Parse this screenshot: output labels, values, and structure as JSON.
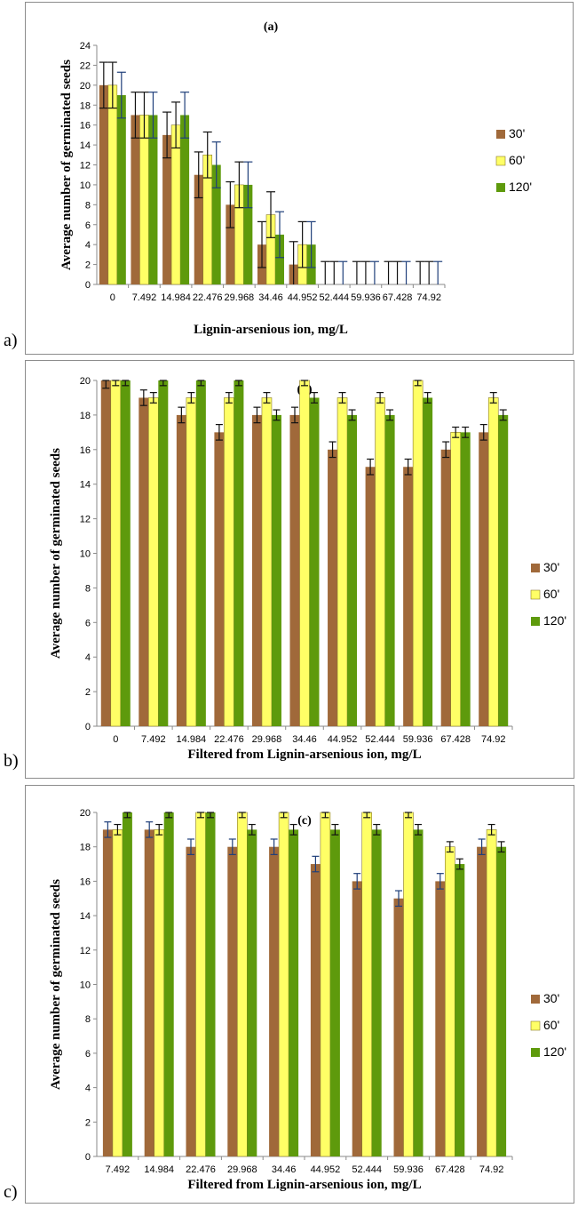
{
  "colors": {
    "s30": "#A0693A",
    "s60": "#FFFF66",
    "s120": "#5E9A0C",
    "err_black": "#111111",
    "err_blue": "#1F3F7A"
  },
  "chart_data": [
    {
      "id": "a",
      "type": "bar",
      "outer_label": "a)",
      "title": "(a)",
      "xlabel": "Lignin-arsenious ion, mg/L",
      "ylabel": "Average number of germinated seeds",
      "ylim": [
        0,
        24
      ],
      "ytick_step": 2,
      "grid": false,
      "legend": "right",
      "categories": [
        "0",
        "7.492",
        "14.984",
        "22.476",
        "29.968",
        "34.46",
        "44.952",
        "52.444",
        "59.936",
        "67.428",
        "74.92"
      ],
      "series": [
        {
          "name": "30'",
          "color": "#A0693A",
          "values": [
            20,
            17,
            15,
            11,
            8,
            4,
            2,
            0,
            0,
            0,
            0
          ],
          "err": [
            2.3,
            2.3,
            2.3,
            2.3,
            2.3,
            2.3,
            2.3,
            2.3,
            2.3,
            2.3,
            2.3
          ]
        },
        {
          "name": "60'",
          "color": "#FFFF66",
          "values": [
            20,
            17,
            16,
            13,
            10,
            7,
            4,
            0,
            0,
            0,
            0
          ],
          "err": [
            2.3,
            2.3,
            2.3,
            2.3,
            2.3,
            2.3,
            2.3,
            2.3,
            2.3,
            2.3,
            2.3
          ]
        },
        {
          "name": "120'",
          "color": "#5E9A0C",
          "values": [
            19,
            17,
            17,
            12,
            10,
            5,
            4,
            0,
            0,
            0,
            0
          ],
          "err": [
            2.3,
            2.3,
            2.3,
            2.3,
            2.3,
            2.3,
            2.3,
            2.3,
            2.3,
            2.3,
            2.3
          ]
        }
      ]
    },
    {
      "id": "b",
      "type": "bar",
      "outer_label": "b)",
      "title": "(b)",
      "xlabel": "Filtered from Lignin-arsenious ion, mg/L",
      "ylabel": "Average number of germinated seeds",
      "ylim": [
        0,
        20
      ],
      "ytick_step": 2,
      "grid": false,
      "legend": "right",
      "categories": [
        "0",
        "7.492",
        "14.984",
        "22.476",
        "29.968",
        "34.46",
        "44.952",
        "52.444",
        "59.936",
        "67.428",
        "74.92"
      ],
      "series": [
        {
          "name": "30'",
          "color": "#A0693A",
          "values": [
            20,
            19,
            18,
            17,
            18,
            18,
            16,
            15,
            15,
            16,
            17
          ],
          "err": [
            0.45,
            0.45,
            0.45,
            0.45,
            0.45,
            0.45,
            0.45,
            0.45,
            0.45,
            0.45,
            0.45
          ]
        },
        {
          "name": "60'",
          "color": "#FFFF66",
          "values": [
            20,
            19,
            19,
            19,
            19,
            20,
            19,
            19,
            20,
            17,
            19
          ],
          "err": [
            0.3,
            0.3,
            0.3,
            0.3,
            0.3,
            0.3,
            0.3,
            0.3,
            0.3,
            0.3,
            0.3
          ]
        },
        {
          "name": "120'",
          "color": "#5E9A0C",
          "values": [
            20,
            20,
            20,
            20,
            18,
            19,
            18,
            18,
            19,
            17,
            18
          ],
          "err": [
            0.3,
            0.3,
            0.3,
            0.3,
            0.3,
            0.3,
            0.3,
            0.3,
            0.3,
            0.3,
            0.3
          ]
        }
      ]
    },
    {
      "id": "c",
      "type": "bar",
      "outer_label": "c)",
      "title": "(c)",
      "xlabel": "Filtered from Lignin-arsenious ion, mg/L",
      "ylabel": "Average number of germinated seeds",
      "ylim": [
        0,
        20
      ],
      "ytick_step": 2,
      "grid": false,
      "legend": "right",
      "categories": [
        "7.492",
        "14.984",
        "22.476",
        "29.968",
        "34.46",
        "44.952",
        "52.444",
        "59.936",
        "67.428",
        "74.92"
      ],
      "series": [
        {
          "name": "30'",
          "color": "#A0693A",
          "values": [
            19,
            19,
            18,
            18,
            18,
            17,
            16,
            15,
            16,
            18
          ],
          "err": [
            0.45,
            0.45,
            0.45,
            0.45,
            0.45,
            0.45,
            0.45,
            0.45,
            0.45,
            0.45
          ]
        },
        {
          "name": "60'",
          "color": "#FFFF66",
          "values": [
            19,
            19,
            20,
            20,
            20,
            20,
            20,
            20,
            18,
            19
          ],
          "err": [
            0.3,
            0.3,
            0.3,
            0.3,
            0.3,
            0.3,
            0.3,
            0.3,
            0.3,
            0.3
          ]
        },
        {
          "name": "120'",
          "color": "#5E9A0C",
          "values": [
            20,
            20,
            20,
            19,
            19,
            19,
            19,
            19,
            17,
            18
          ],
          "err": [
            0.3,
            0.3,
            0.3,
            0.3,
            0.3,
            0.3,
            0.3,
            0.3,
            0.3,
            0.3
          ]
        }
      ]
    }
  ]
}
